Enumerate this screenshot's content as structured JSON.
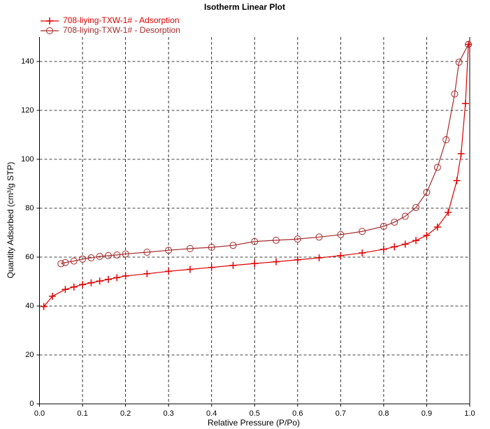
{
  "chart_data": {
    "type": "scatter",
    "title": "Isotherm Linear Plot",
    "x_label": "Relative Pressure (P/Po)",
    "y_label": "Quantity Adsorbed (cm³/g STP)",
    "xlim": [
      0,
      1
    ],
    "ylim": [
      0,
      150
    ],
    "xticks": [
      {
        "value": 0,
        "label": "0.0"
      },
      0.1,
      0.2,
      0.3,
      0.4,
      0.5,
      0.6,
      0.7,
      0.8,
      0.9,
      {
        "value": 1,
        "label": "1.0"
      }
    ],
    "yticks": [
      0,
      20,
      40,
      60,
      80,
      100,
      120,
      140
    ],
    "grid": true,
    "legend": "top-left",
    "series": [
      {
        "name": "708-liying-TXW-1# - Adsorption",
        "color": "#e00000",
        "marker": "plus",
        "x": [
          0.01,
          0.03,
          0.06,
          0.08,
          0.1,
          0.12,
          0.14,
          0.16,
          0.18,
          0.2,
          0.25,
          0.3,
          0.35,
          0.4,
          0.45,
          0.5,
          0.55,
          0.6,
          0.65,
          0.7,
          0.75,
          0.8,
          0.825,
          0.85,
          0.875,
          0.9,
          0.925,
          0.95,
          0.97,
          0.98,
          0.99,
          0.997
        ],
        "values": [
          39.8,
          44,
          46.8,
          47.8,
          48.8,
          49.5,
          50.2,
          50.9,
          51.6,
          52.3,
          53.2,
          54.2,
          55,
          55.8,
          56.6,
          57.4,
          58.1,
          58.9,
          59.7,
          60.6,
          61.7,
          63.2,
          64.2,
          65.3,
          66.8,
          68.9,
          72.3,
          78.3,
          91.3,
          102.3,
          122.8,
          147
        ]
      },
      {
        "name": "708-liying-TXW-1# - Desorption",
        "color": "#a52a2a",
        "marker": "circle",
        "x": [
          0.997,
          0.975,
          0.965,
          0.945,
          0.925,
          0.9,
          0.875,
          0.85,
          0.825,
          0.8,
          0.75,
          0.7,
          0.65,
          0.6,
          0.55,
          0.5,
          0.45,
          0.4,
          0.35,
          0.3,
          0.25,
          0.2,
          0.18,
          0.16,
          0.14,
          0.12,
          0.1,
          0.08,
          0.06,
          0.05
        ],
        "values": [
          147,
          139.7,
          126.7,
          108,
          96.7,
          86.5,
          80.3,
          76.7,
          74.3,
          72.6,
          70.5,
          69.2,
          68.2,
          67.4,
          66.9,
          66.4,
          64.8,
          64,
          63.5,
          62.8,
          62,
          61.3,
          60.9,
          60.6,
          60.3,
          59.7,
          59.2,
          58.4,
          57.8,
          57.3
        ]
      }
    ]
  }
}
